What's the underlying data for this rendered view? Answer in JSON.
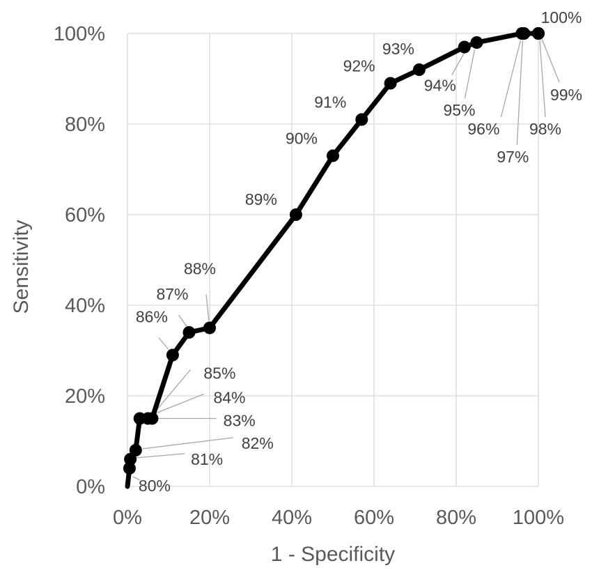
{
  "chart_data": {
    "type": "line",
    "xlabel": "1 - Specificity",
    "ylabel": "Sensitivity",
    "xlim": [
      0,
      100
    ],
    "ylim": [
      0,
      100
    ],
    "x_ticks": [
      "0%",
      "20%",
      "40%",
      "60%",
      "80%",
      "100%"
    ],
    "y_ticks": [
      "0%",
      "20%",
      "40%",
      "60%",
      "80%",
      "100%"
    ],
    "grid": true,
    "legend": "none",
    "series": [
      {
        "color": "#000000",
        "points": [
          {
            "label": "80%",
            "x": 0.5,
            "y": 4
          },
          {
            "label": "81%",
            "x": 0.7,
            "y": 6
          },
          {
            "label": "82%",
            "x": 2,
            "y": 8
          },
          {
            "label": "83%",
            "x": 3,
            "y": 15
          },
          {
            "label": "84%",
            "x": 5,
            "y": 15
          },
          {
            "label": "85%",
            "x": 6,
            "y": 15
          },
          {
            "label": "86%",
            "x": 11,
            "y": 29
          },
          {
            "label": "87%",
            "x": 15,
            "y": 34
          },
          {
            "label": "88%",
            "x": 20,
            "y": 35
          },
          {
            "label": "89%",
            "x": 41,
            "y": 60
          },
          {
            "label": "90%",
            "x": 50,
            "y": 73
          },
          {
            "label": "91%",
            "x": 57,
            "y": 81
          },
          {
            "label": "92%",
            "x": 64,
            "y": 89
          },
          {
            "label": "93%",
            "x": 71,
            "y": 92
          },
          {
            "label": "94%",
            "x": 82,
            "y": 97
          },
          {
            "label": "95%",
            "x": 85,
            "y": 98
          },
          {
            "label": "96%",
            "x": 96,
            "y": 100
          },
          {
            "label": "97%",
            "x": 96.5,
            "y": 100
          },
          {
            "label": "98%",
            "x": 100,
            "y": 100
          },
          {
            "label": "99%",
            "x": 100,
            "y": 100
          },
          {
            "label": "100%",
            "x": 100,
            "y": 100
          }
        ]
      }
    ]
  }
}
